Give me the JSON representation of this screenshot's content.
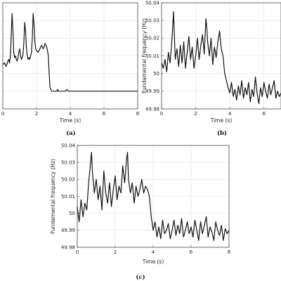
{
  "chart_data": [
    {
      "type": "line",
      "caption": "(a)",
      "xlabel": "Time (s)",
      "ylabel": "",
      "xlim": [
        0,
        8
      ],
      "ylim": [
        49.98,
        50.04
      ],
      "xticks": [
        "0",
        "2",
        "4",
        "6",
        "8"
      ],
      "yticks": [],
      "grid": true,
      "series": [
        {
          "x": [
            0,
            0.1,
            0.2,
            0.3,
            0.35,
            0.4,
            0.45,
            0.5,
            0.55,
            0.6,
            0.65,
            0.7,
            0.75,
            0.8,
            0.85,
            0.9,
            0.95,
            1.0,
            1.05,
            1.1,
            1.15,
            1.2,
            1.25,
            1.3,
            1.35,
            1.4,
            1.45,
            1.5,
            1.55,
            1.6,
            1.65,
            1.7,
            1.75,
            1.8,
            1.85,
            1.9,
            1.95,
            2.0,
            2.1,
            2.2,
            2.3,
            2.35,
            2.4,
            2.45,
            2.5,
            2.55,
            2.6,
            2.65,
            2.7,
            2.75,
            2.8,
            2.9,
            3.0,
            3.1,
            3.2,
            3.25,
            3.3,
            3.35,
            3.4,
            3.45,
            3.5,
            3.6,
            3.7,
            3.8,
            3.9,
            4.0,
            4.2,
            4.4,
            4.6,
            4.8,
            5.0,
            5.2,
            5.4,
            5.6,
            5.8,
            6.0,
            6.2,
            6.4,
            6.6,
            6.8,
            7.0,
            7.2,
            7.4,
            7.6,
            7.8,
            8.0
          ],
          "y": [
            50.005,
            50.006,
            50.004,
            50.007,
            50.008,
            50.006,
            50.01,
            50.022,
            50.034,
            50.024,
            50.012,
            50.009,
            50.01,
            50.008,
            50.007,
            50.009,
            50.012,
            50.014,
            50.01,
            50.008,
            50.009,
            50.011,
            50.018,
            50.029,
            50.024,
            50.015,
            50.01,
            50.008,
            50.009,
            50.008,
            50.01,
            50.012,
            50.02,
            50.034,
            50.028,
            50.018,
            50.014,
            50.013,
            50.012,
            50.014,
            50.016,
            50.015,
            50.014,
            50.015,
            50.017,
            50.016,
            50.015,
            50.013,
            50.01,
            50.0,
            49.992,
            49.99,
            49.99,
            49.99,
            49.99,
            49.991,
            49.99,
            49.99,
            49.99,
            49.99,
            49.99,
            49.99,
            49.99,
            49.991,
            49.99,
            49.99,
            49.99,
            49.99,
            49.99,
            49.99,
            49.99,
            49.99,
            49.99,
            49.99,
            49.99,
            49.99,
            49.99,
            49.99,
            49.99,
            49.99,
            49.99,
            49.99,
            49.99,
            49.99,
            49.99,
            49.99
          ]
        }
      ]
    },
    {
      "type": "line",
      "caption": "(b)",
      "xlabel": "Time (s)",
      "ylabel": "Fundamental frequency (Hz)",
      "xlim": [
        0,
        7
      ],
      "ylim": [
        49.98,
        50.04
      ],
      "xticks": [
        "0",
        "2",
        "4",
        "6"
      ],
      "yticks": [
        "49.98",
        "49.99",
        "50",
        "50.01",
        "50.02",
        "50.03",
        "50.04"
      ],
      "grid": true,
      "series": [
        {
          "x": [
            0,
            0.1,
            0.2,
            0.3,
            0.4,
            0.5,
            0.6,
            0.65,
            0.7,
            0.75,
            0.8,
            0.9,
            1.0,
            1.1,
            1.2,
            1.3,
            1.4,
            1.5,
            1.6,
            1.7,
            1.8,
            1.9,
            2.0,
            2.1,
            2.2,
            2.3,
            2.4,
            2.5,
            2.6,
            2.65,
            2.7,
            2.8,
            2.9,
            3.0,
            3.1,
            3.2,
            3.3,
            3.4,
            3.5,
            3.6,
            3.7,
            3.8,
            3.9,
            4.0,
            4.1,
            4.2,
            4.3,
            4.4,
            4.5,
            4.6,
            4.7,
            4.8,
            4.9,
            5.0,
            5.1,
            5.2,
            5.3,
            5.4,
            5.5,
            5.6,
            5.7,
            5.8,
            5.9,
            6.0,
            6.1,
            6.2,
            6.3,
            6.4,
            6.5,
            6.6,
            6.7,
            6.8,
            6.9,
            7.0
          ],
          "y": [
            50.006,
            50.003,
            50.008,
            50.001,
            50.012,
            50.006,
            50.018,
            50.026,
            50.035,
            50.022,
            50.008,
            50.014,
            50.004,
            50.016,
            50.006,
            50.018,
            50.003,
            50.012,
            50.021,
            50.008,
            50.015,
            50.003,
            50.01,
            50.02,
            50.008,
            50.016,
            50.022,
            50.011,
            50.031,
            50.026,
            50.018,
            50.01,
            50.02,
            50.005,
            50.015,
            50.009,
            50.018,
            50.024,
            50.014,
            50.01,
            50.0,
            49.996,
            49.992,
            49.989,
            49.995,
            49.987,
            49.991,
            49.985,
            49.993,
            49.988,
            49.996,
            49.986,
            49.992,
            49.988,
            49.995,
            49.984,
            49.991,
            49.987,
            49.998,
            49.989,
            49.983,
            49.992,
            49.987,
            49.995,
            49.99,
            49.986,
            49.994,
            49.988,
            49.992,
            49.996,
            49.986,
            49.99,
            49.987,
            49.989
          ]
        }
      ]
    },
    {
      "type": "line",
      "caption": "(c)",
      "xlabel": "Time (s)",
      "ylabel": "Fundamental frequency (Hz)",
      "xlim": [
        0,
        8
      ],
      "ylim": [
        49.98,
        50.04
      ],
      "xticks": [
        "0",
        "2",
        "4",
        "6",
        "8"
      ],
      "yticks": [
        "49.98",
        "49.99",
        "50",
        "50.01",
        "50.02",
        "50.03",
        "50.04"
      ],
      "grid": true,
      "series": [
        {
          "x": [
            0,
            0.1,
            0.2,
            0.3,
            0.4,
            0.5,
            0.6,
            0.7,
            0.75,
            0.8,
            0.9,
            1.0,
            1.1,
            1.2,
            1.3,
            1.4,
            1.5,
            1.6,
            1.7,
            1.8,
            1.9,
            2.0,
            2.1,
            2.2,
            2.3,
            2.4,
            2.5,
            2.6,
            2.65,
            2.7,
            2.8,
            2.9,
            3.0,
            3.1,
            3.2,
            3.3,
            3.4,
            3.5,
            3.6,
            3.7,
            3.8,
            3.9,
            4.0,
            4.1,
            4.2,
            4.3,
            4.4,
            4.5,
            4.6,
            4.7,
            4.8,
            4.9,
            5.0,
            5.1,
            5.2,
            5.3,
            5.4,
            5.5,
            5.6,
            5.7,
            5.8,
            5.9,
            6.0,
            6.1,
            6.2,
            6.3,
            6.4,
            6.5,
            6.6,
            6.7,
            6.8,
            6.9,
            7.0,
            7.1,
            7.2,
            7.3,
            7.4,
            7.5,
            7.6,
            7.7,
            7.8,
            7.9,
            8.0
          ],
          "y": [
            50.004,
            49.995,
            50.008,
            49.998,
            50.006,
            50.002,
            50.018,
            50.03,
            50.036,
            50.024,
            50.012,
            50.02,
            50.008,
            50.016,
            50.002,
            50.025,
            50.012,
            50.006,
            50.018,
            50.004,
            50.014,
            50.022,
            50.008,
            50.016,
            50.012,
            50.028,
            50.018,
            50.032,
            50.036,
            50.02,
            50.012,
            50.018,
            50.006,
            50.016,
            50.01,
            50.014,
            50.02,
            50.012,
            50.016,
            50.014,
            50.01,
            49.998,
            49.99,
            49.995,
            49.986,
            49.992,
            49.985,
            49.996,
            49.988,
            49.99,
            49.994,
            49.985,
            49.99,
            49.996,
            49.987,
            49.993,
            49.988,
            49.997,
            49.986,
            49.99,
            49.995,
            49.988,
            49.992,
            49.986,
            49.996,
            49.99,
            49.984,
            49.995,
            49.988,
            49.993,
            49.998,
            49.986,
            49.992,
            49.989,
            49.984,
            49.995,
            49.99,
            49.987,
            49.993,
            49.984,
            49.991,
            49.988,
            49.99
          ]
        }
      ]
    }
  ]
}
